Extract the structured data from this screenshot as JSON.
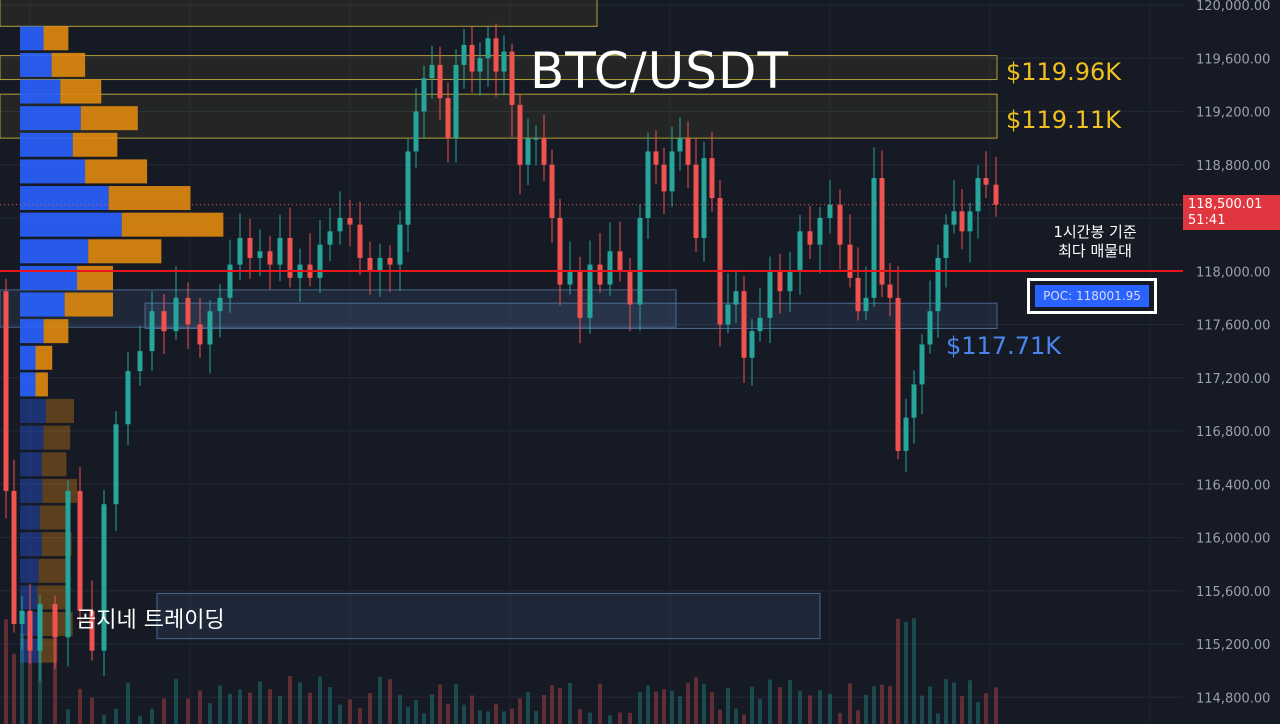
{
  "title": "BTC/USDT",
  "chart_data": {
    "type": "candlestick",
    "symbol": "BTC/USDT",
    "y_axis": {
      "ticks": [
        "120,000.00",
        "119,600.00",
        "119,200.00",
        "118,800.00",
        "118,400.00",
        "118,000.00",
        "117,600.00",
        "117,200.00",
        "116,800.00",
        "116,400.00",
        "116,000.00",
        "115,600.00",
        "115,200.00",
        "114,800.00"
      ],
      "ylim": [
        114700,
        120040
      ]
    },
    "current_price": {
      "value": "118,500.01",
      "countdown": "51:41"
    },
    "poc": {
      "label": "POC: 118001.95",
      "value": 118001.95
    },
    "zone_labels": [
      "$119.96K",
      "$119.11K",
      "$117.71K"
    ],
    "annotation": [
      "1시간봉 기준",
      "최다 매물대"
    ],
    "watermark": "곰지네 트레이딩",
    "price_path": [
      [
        0,
        117850
      ],
      [
        6,
        116350
      ],
      [
        14,
        115350
      ],
      [
        22,
        115450
      ],
      [
        30,
        115150
      ],
      [
        40,
        115500
      ],
      [
        55,
        115250
      ],
      [
        68,
        116350
      ],
      [
        80,
        115450
      ],
      [
        92,
        115150
      ],
      [
        104,
        116250
      ],
      [
        116,
        116850
      ],
      [
        128,
        117250
      ],
      [
        140,
        117400
      ],
      [
        152,
        117700
      ],
      [
        164,
        117550
      ],
      [
        176,
        117800
      ],
      [
        188,
        117600
      ],
      [
        200,
        117450
      ],
      [
        210,
        117700
      ],
      [
        220,
        117800
      ],
      [
        230,
        118050
      ],
      [
        240,
        118250
      ],
      [
        250,
        118100
      ],
      [
        260,
        118150
      ],
      [
        270,
        118050
      ],
      [
        280,
        118250
      ],
      [
        290,
        117950
      ],
      [
        300,
        118050
      ],
      [
        310,
        117950
      ],
      [
        320,
        118200
      ],
      [
        330,
        118300
      ],
      [
        340,
        118400
      ],
      [
        350,
        118350
      ],
      [
        360,
        118100
      ],
      [
        370,
        118000
      ],
      [
        380,
        118100
      ],
      [
        390,
        118050
      ],
      [
        400,
        118350
      ],
      [
        408,
        118900
      ],
      [
        416,
        119200
      ],
      [
        424,
        119450
      ],
      [
        432,
        119550
      ],
      [
        440,
        119300
      ],
      [
        448,
        119000
      ],
      [
        456,
        119550
      ],
      [
        464,
        119700
      ],
      [
        472,
        119500
      ],
      [
        480,
        119600
      ],
      [
        488,
        119750
      ],
      [
        496,
        119500
      ],
      [
        504,
        119650
      ],
      [
        512,
        119250
      ],
      [
        520,
        118800
      ],
      [
        528,
        119000
      ],
      [
        536,
        119000
      ],
      [
        544,
        118800
      ],
      [
        552,
        118400
      ],
      [
        560,
        117900
      ],
      [
        570,
        118000
      ],
      [
        580,
        117650
      ],
      [
        590,
        118050
      ],
      [
        600,
        117900
      ],
      [
        610,
        118150
      ],
      [
        620,
        118000
      ],
      [
        630,
        117750
      ],
      [
        640,
        118400
      ],
      [
        648,
        118900
      ],
      [
        656,
        118800
      ],
      [
        664,
        118600
      ],
      [
        672,
        118900
      ],
      [
        680,
        119000
      ],
      [
        688,
        118800
      ],
      [
        696,
        118250
      ],
      [
        704,
        118850
      ],
      [
        712,
        118550
      ],
      [
        720,
        117600
      ],
      [
        728,
        117750
      ],
      [
        736,
        117850
      ],
      [
        744,
        117350
      ],
      [
        752,
        117550
      ],
      [
        760,
        117650
      ],
      [
        770,
        118000
      ],
      [
        780,
        117850
      ],
      [
        790,
        118000
      ],
      [
        800,
        118300
      ],
      [
        810,
        118200
      ],
      [
        820,
        118400
      ],
      [
        830,
        118500
      ],
      [
        840,
        118200
      ],
      [
        850,
        117950
      ],
      [
        858,
        117700
      ],
      [
        866,
        117800
      ],
      [
        874,
        118700
      ],
      [
        882,
        117900
      ],
      [
        890,
        117800
      ],
      [
        898,
        116650
      ],
      [
        906,
        116900
      ],
      [
        914,
        117150
      ],
      [
        922,
        117450
      ],
      [
        930,
        117700
      ],
      [
        938,
        118100
      ],
      [
        946,
        118350
      ],
      [
        954,
        118450
      ],
      [
        962,
        118300
      ],
      [
        970,
        118450
      ],
      [
        978,
        118700
      ],
      [
        986,
        118650
      ],
      [
        996,
        118500
      ]
    ],
    "volume_profile": [
      {
        "price": 119750,
        "buy": 38,
        "sell": 40
      },
      {
        "price": 119550,
        "buy": 51,
        "sell": 54
      },
      {
        "price": 119350,
        "buy": 65,
        "sell": 66
      },
      {
        "price": 119150,
        "buy": 98,
        "sell": 92
      },
      {
        "price": 118950,
        "buy": 85,
        "sell": 72
      },
      {
        "price": 118750,
        "buy": 105,
        "sell": 100
      },
      {
        "price": 118550,
        "buy": 143,
        "sell": 132
      },
      {
        "price": 118350,
        "buy": 164,
        "sell": 164
      },
      {
        "price": 118150,
        "buy": 110,
        "sell": 118
      },
      {
        "price": 117950,
        "buy": 92,
        "sell": 58
      },
      {
        "price": 117750,
        "buy": 72,
        "sell": 78
      },
      {
        "price": 117550,
        "buy": 38,
        "sell": 40
      },
      {
        "price": 117350,
        "buy": 25,
        "sell": 27
      },
      {
        "price": 117150,
        "buy": 25,
        "sell": 20
      },
      {
        "price": 116950,
        "buy": 42,
        "sell": 45
      },
      {
        "price": 116750,
        "buy": 38,
        "sell": 43
      },
      {
        "price": 116550,
        "buy": 35,
        "sell": 40
      },
      {
        "price": 116350,
        "buy": 36,
        "sell": 56
      },
      {
        "price": 116150,
        "buy": 32,
        "sell": 48
      },
      {
        "price": 115950,
        "buy": 35,
        "sell": 48
      },
      {
        "price": 115750,
        "buy": 30,
        "sell": 45
      },
      {
        "price": 115550,
        "buy": 28,
        "sell": 52
      },
      {
        "price": 115350,
        "buy": 30,
        "sell": 55
      },
      {
        "price": 115150,
        "buy": 30,
        "sell": 30
      }
    ],
    "zones": [
      {
        "kind": "resistance",
        "y1": 120060,
        "y2": 119840
      },
      {
        "kind": "resistance",
        "y1": 119620,
        "y2": 119440
      },
      {
        "kind": "resistance",
        "y1": 119330,
        "y2": 119000
      },
      {
        "kind": "support",
        "y1": 117860,
        "y2": 117580
      },
      {
        "kind": "support",
        "y1": 117760,
        "y2": 117570
      },
      {
        "kind": "label",
        "y1": 115580,
        "y2": 115240
      }
    ],
    "colors": {
      "up": "#26a69a",
      "down": "#ef5350",
      "poc_line": "#e8161c",
      "vp_buy": "#2962ff",
      "vp_sell": "#e08a0e",
      "zone_yellow": "#e5c93a",
      "zone_blue": "#5a7fb0"
    }
  }
}
